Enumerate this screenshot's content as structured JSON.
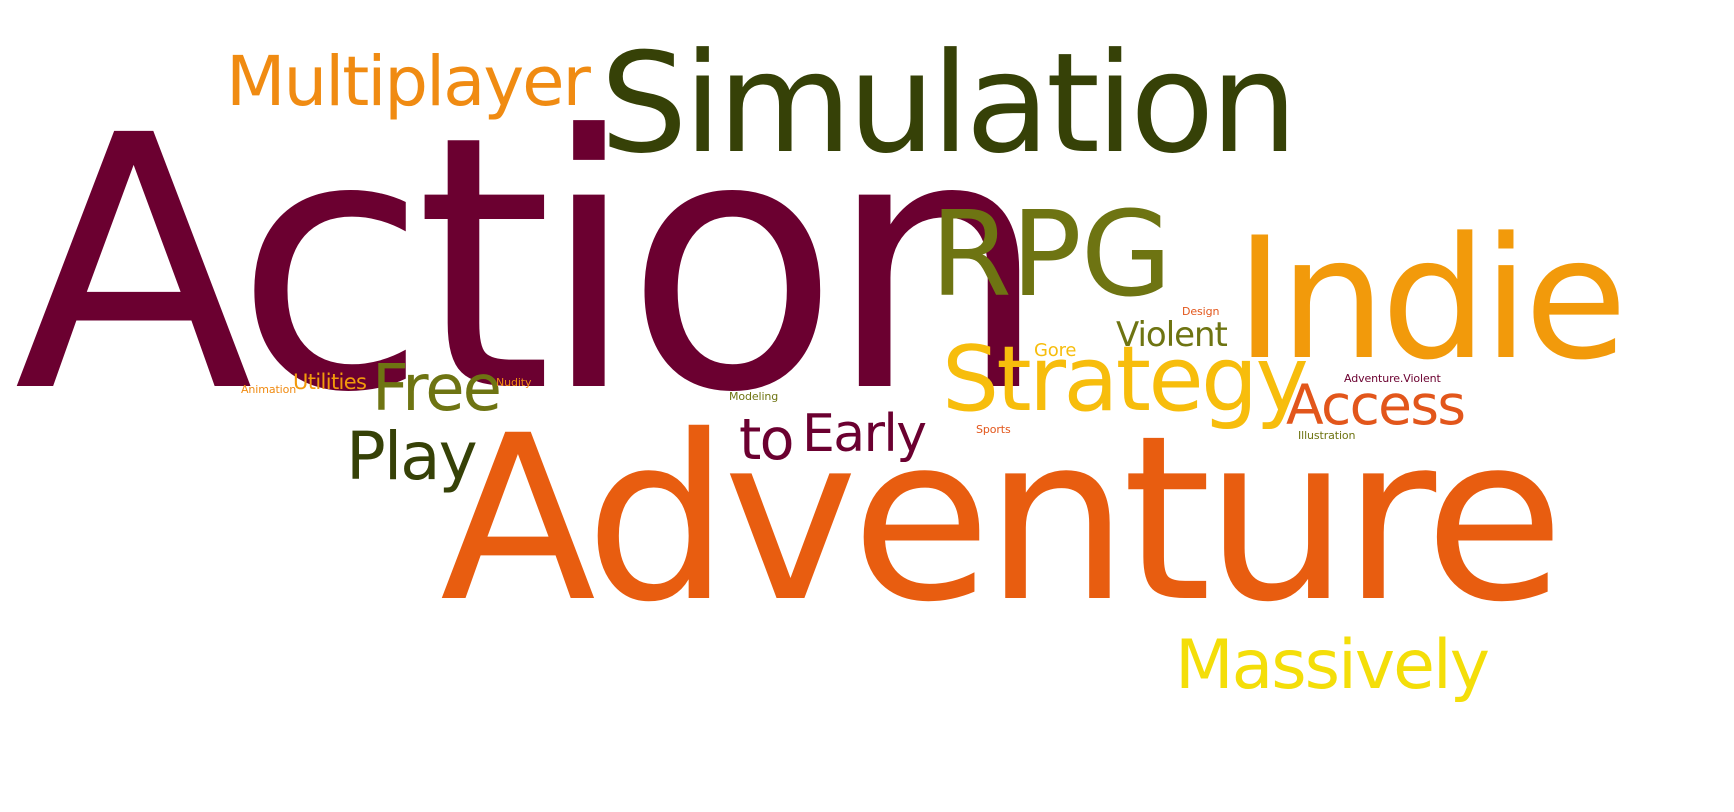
{
  "words": [
    {
      "id": "action",
      "text": "Action",
      "color": "#6b0030"
    },
    {
      "id": "adventure",
      "text": "Adventure",
      "color": "#e85d10"
    },
    {
      "id": "simulation",
      "text": "Simulation",
      "color": "#364107"
    },
    {
      "id": "indie",
      "text": "Indie",
      "color": "#f29a0b"
    },
    {
      "id": "rpg",
      "text": "RPG",
      "color": "#6e7412"
    },
    {
      "id": "strategy",
      "text": "Strategy",
      "color": "#f7bd0c"
    },
    {
      "id": "multiplayer",
      "text": "Multiplayer",
      "color": "#f08b12"
    },
    {
      "id": "massively",
      "text": "Massively",
      "color": "#f4de09"
    },
    {
      "id": "access",
      "text": "Access",
      "color": "#e2561b"
    },
    {
      "id": "early",
      "text": "Early",
      "color": "#6b0030"
    },
    {
      "id": "to",
      "text": "to",
      "color": "#6b0030"
    },
    {
      "id": "play",
      "text": "Play",
      "color": "#364107"
    },
    {
      "id": "free",
      "text": "Free",
      "color": "#6e7412"
    },
    {
      "id": "violent",
      "text": "Violent",
      "color": "#6e7412"
    },
    {
      "id": "gore",
      "text": "Gore",
      "color": "#f7bd0c"
    },
    {
      "id": "utilities",
      "text": "Utilities",
      "color": "#f29a0b"
    },
    {
      "id": "animation",
      "text": "Animation",
      "color": "#f08b12"
    },
    {
      "id": "nudity",
      "text": "Nudity",
      "color": "#f08b12"
    },
    {
      "id": "modeling",
      "text": "Modeling",
      "color": "#6e7412"
    },
    {
      "id": "design",
      "text": "Design",
      "color": "#e2561b"
    },
    {
      "id": "sports",
      "text": "Sports",
      "color": "#e2561b"
    },
    {
      "id": "adventure-violent",
      "text": "Adventure.Violent",
      "color": "#6b0030"
    },
    {
      "id": "illustration",
      "text": "Illustration",
      "color": "#6e7412"
    }
  ]
}
